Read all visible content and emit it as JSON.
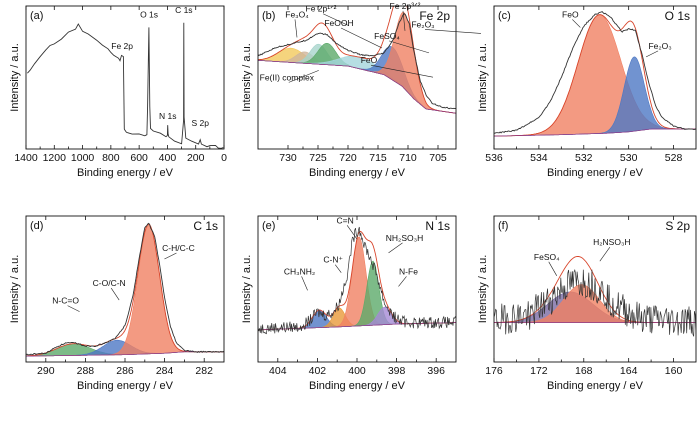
{
  "chart_data": [
    {
      "type": "line",
      "panel_label": "(a)",
      "title": "",
      "xlabel": "Binding energy / eV",
      "ylabel": "Intensity / a.u.",
      "x_reversed": true,
      "xlim": [
        1400,
        0
      ],
      "xticks": [
        1400,
        1200,
        1000,
        800,
        600,
        400,
        200,
        0
      ],
      "ylim": [
        0,
        100
      ],
      "series": [
        {
          "color": "#111111",
          "x": [
            1390,
            1370,
            1340,
            1300,
            1260,
            1230,
            1200,
            1150,
            1100,
            1050,
            1030,
            1000,
            960,
            900,
            860,
            820,
            800,
            780,
            745,
            735,
            725,
            711,
            705,
            700,
            690,
            650,
            600,
            560,
            545,
            540,
            531,
            525,
            520,
            500,
            450,
            410,
            400,
            398,
            395,
            390,
            350,
            300,
            286,
            284,
            282,
            270,
            230,
            180,
            168,
            160,
            120,
            100,
            60,
            40,
            20,
            5
          ],
          "y": [
            53,
            55,
            59,
            64,
            70,
            72,
            73,
            77,
            81,
            84,
            88,
            83,
            80,
            76,
            73,
            70,
            68,
            66,
            64,
            62,
            66,
            64,
            14,
            13,
            12,
            11,
            10,
            9,
            10,
            30,
            85,
            30,
            14,
            13,
            11,
            9,
            10,
            16,
            11,
            8,
            5,
            4,
            20,
            88,
            22,
            7,
            5,
            3,
            7,
            3,
            2,
            2,
            2,
            1,
            1,
            1
          ]
        }
      ],
      "annotations": [
        {
          "text": "Fe 2p",
          "x": 720,
          "y": 70
        },
        {
          "text": "O 1s",
          "x": 530,
          "y": 92
        },
        {
          "text": "C 1s",
          "x": 284,
          "y": 95
        },
        {
          "text": "N 1s",
          "x": 398,
          "y": 21
        },
        {
          "text": "S 2p",
          "x": 168,
          "y": 16
        }
      ]
    },
    {
      "type": "line",
      "panel_label": "(b)",
      "title": "Fe 2p",
      "xlabel": "Binding energy / eV",
      "ylabel": "Intensity / a.u.",
      "x_reversed": true,
      "xlim": [
        735,
        702
      ],
      "xticks": [
        730,
        725,
        720,
        715,
        710,
        705
      ],
      "ylim": [
        0,
        100
      ],
      "background": {
        "x": [
          735,
          720,
          714,
          711,
          709,
          707,
          702
        ],
        "y": [
          62,
          58,
          52,
          44,
          35,
          28,
          25
        ]
      },
      "envelope": {
        "x": [
          735,
          732,
          729,
          727,
          725,
          723.5,
          722,
          720,
          718,
          716,
          714,
          712.5,
          711.5,
          710.6,
          709.8,
          709,
          708,
          707,
          706,
          704,
          702
        ],
        "y": [
          65,
          71,
          74,
          76,
          81,
          80,
          74,
          69,
          66,
          65,
          67,
          76,
          88,
          95,
          88,
          68,
          48,
          38,
          32,
          29,
          28
        ]
      },
      "series": [
        {
          "name": "Fe(II) complex",
          "color": "#f3c95c",
          "center": 729.5,
          "height": 10,
          "width": 2.2
        },
        {
          "name": "Fe₃O₄",
          "color": "#cfb59c",
          "center": 727.2,
          "height": 8,
          "width": 1.5
        },
        {
          "name": "Fe 2p¹ᐟ²",
          "color": "#a7d4cc",
          "center": 724.9,
          "height": 14,
          "width": 1.4
        },
        {
          "name": "FeOOH",
          "color": "#5daa6a",
          "center": 723.5,
          "height": 15,
          "width": 1.5
        },
        {
          "name": "FeO",
          "color": "#a4d6dc",
          "center": 718.2,
          "height": 8,
          "width": 3.2
        },
        {
          "name": "FeSO₄",
          "color": "#4d78c4",
          "center": 712.6,
          "height": 23,
          "width": 1.7
        },
        {
          "name": "Fe 2p³ᐟ²",
          "color": "#f08163",
          "center": 710.6,
          "height": 53,
          "width": 1.6
        }
      ],
      "annotations": [
        {
          "text": "Fe₃O₄",
          "x": 728.5,
          "y": 92
        },
        {
          "text": "Fe 2p¹ᐟ²",
          "x": 724.5,
          "y": 96
        },
        {
          "text": "FeOOH",
          "x": 721.5,
          "y": 86
        },
        {
          "text": "FeO",
          "x": 716.5,
          "y": 60
        },
        {
          "text": "FeSO₄",
          "x": 713.5,
          "y": 77
        },
        {
          "text": "Fe 2p³ᐟ²",
          "x": 710.5,
          "y": 98
        },
        {
          "text": "Fe₂O₃",
          "x": 707.5,
          "y": 85
        },
        {
          "text": "Fe(II) complex",
          "x": 730.2,
          "y": 48
        }
      ]
    },
    {
      "type": "line",
      "panel_label": "(c)",
      "title": "O 1s",
      "xlabel": "Binding energy / eV",
      "ylabel": "Intensity / a.u.",
      "x_reversed": true,
      "xlim": [
        536,
        527
      ],
      "xticks": [
        536,
        534,
        532,
        530,
        528
      ],
      "ylim": [
        0,
        100
      ],
      "background": {
        "x": [
          536,
          533,
          531,
          530,
          529,
          527
        ],
        "y": [
          9,
          10,
          11,
          12,
          14,
          14
        ]
      },
      "envelope": {
        "x": [
          536,
          535,
          534,
          533.5,
          533,
          532.5,
          532,
          531.5,
          531.2,
          530.8,
          530.3,
          530,
          529.7,
          529.4,
          529.1,
          528.8,
          528.5,
          528,
          527.5,
          527
        ],
        "y": [
          11,
          13,
          22,
          33,
          50,
          70,
          86,
          94,
          96,
          92,
          82,
          84,
          83,
          66,
          46,
          30,
          22,
          16,
          14,
          14
        ]
      },
      "series": [
        {
          "name": "FeO",
          "color": "#f08163",
          "center": 531.3,
          "height": 83,
          "width": 0.95
        },
        {
          "name": "Fe₂O₃",
          "color": "#4d78c4",
          "center": 529.75,
          "height": 52,
          "width": 0.45
        }
      ],
      "annotations": [
        {
          "text": "FeO",
          "x": 532.6,
          "y": 92
        },
        {
          "text": "Fe₂O₃",
          "x": 528.6,
          "y": 70
        }
      ]
    },
    {
      "type": "line",
      "panel_label": "(d)",
      "title": "C 1s",
      "xlabel": "Binding energy / eV",
      "ylabel": "Intensity / a.u.",
      "x_reversed": true,
      "xlim": [
        291,
        281
      ],
      "xticks": [
        290,
        288,
        286,
        284,
        282
      ],
      "ylim": [
        0,
        100
      ],
      "background": {
        "x": [
          291,
          286,
          284,
          283,
          281
        ],
        "y": [
          4,
          5,
          6,
          7,
          7
        ]
      },
      "envelope": {
        "x": [
          291,
          290,
          289.5,
          289,
          288.5,
          288,
          287.5,
          287,
          286.5,
          286,
          285.6,
          285.3,
          285,
          284.8,
          284.5,
          284.2,
          284,
          283.7,
          283.4,
          283,
          282.5,
          282,
          281
        ],
        "y": [
          5,
          6,
          10,
          13,
          13,
          11,
          11,
          13,
          16,
          25,
          45,
          70,
          92,
          95,
          86,
          62,
          44,
          24,
          13,
          8,
          7,
          7,
          7
        ]
      },
      "series": [
        {
          "name": "N-C=O",
          "color": "#5daa6a",
          "center": 288.6,
          "height": 8,
          "width": 0.85
        },
        {
          "name": "C-O/C-N",
          "color": "#4d78c4",
          "center": 286.4,
          "height": 10,
          "width": 0.7
        },
        {
          "name": "C-H/C-C",
          "color": "#f08163",
          "center": 284.8,
          "height": 88,
          "width": 0.55
        }
      ],
      "annotations": [
        {
          "text": "N-C=O",
          "x": 289.0,
          "y": 40
        },
        {
          "text": "C-O/C-N",
          "x": 286.8,
          "y": 52
        },
        {
          "text": "C-H/C-C",
          "x": 283.3,
          "y": 76
        }
      ]
    },
    {
      "type": "line",
      "panel_label": "(e)",
      "title": "N 1s",
      "xlabel": "Binding energy / eV",
      "ylabel": "Intensity / a.u.",
      "x_reversed": true,
      "xlim": [
        405,
        395
      ],
      "xticks": [
        404,
        402,
        400,
        398,
        396
      ],
      "ylim": [
        0,
        100
      ],
      "noise_amplitude": 8,
      "background": {
        "x": [
          405,
          401,
          398,
          395
        ],
        "y": [
          22,
          24,
          26,
          27
        ]
      },
      "envelope": {
        "x": [
          405,
          403,
          402.4,
          402,
          401.6,
          401.2,
          400.9,
          400.5,
          400.2,
          399.9,
          399.6,
          399.3,
          399.0,
          398.6,
          398.2,
          397.8,
          397.3,
          396.5,
          395
        ],
        "y": [
          23,
          24,
          28,
          34,
          32,
          34,
          40,
          60,
          85,
          92,
          80,
          70,
          60,
          40,
          32,
          28,
          27,
          27,
          27
        ]
      },
      "series": [
        {
          "name": "CH₃NH₂",
          "color": "#4d78c4",
          "center": 401.9,
          "height": 12,
          "width": 0.35
        },
        {
          "name": "C-N⁺",
          "color": "#e89a3a",
          "center": 400.9,
          "height": 13,
          "width": 0.3
        },
        {
          "name": "C=N",
          "color": "#f08163",
          "center": 399.9,
          "height": 61,
          "width": 0.35
        },
        {
          "name": "NH₂SO₃H",
          "color": "#5daa6a",
          "center": 399.2,
          "height": 44,
          "width": 0.3
        },
        {
          "name": "N-Fe",
          "color": "#a58ad6",
          "center": 398.6,
          "height": 12,
          "width": 0.35
        }
      ],
      "annotations": [
        {
          "text": "CH₃NH₂",
          "x": 402.9,
          "y": 60
        },
        {
          "text": "C-N⁺",
          "x": 401.2,
          "y": 68
        },
        {
          "text": "C=N",
          "x": 400.6,
          "y": 95
        },
        {
          "text": "NH₂SO₃H",
          "x": 397.6,
          "y": 83
        },
        {
          "text": "N-Fe",
          "x": 397.4,
          "y": 60
        }
      ]
    },
    {
      "type": "line",
      "panel_label": "(f)",
      "title": "S 2p",
      "xlabel": "Binding energy / eV",
      "ylabel": "Intensity / a.u.",
      "x_reversed": true,
      "xlim": [
        176,
        158
      ],
      "xticks": [
        176,
        172,
        168,
        164,
        160
      ],
      "ylim": [
        0,
        100
      ],
      "noise_amplitude": 22,
      "background": {
        "x": [
          176,
          168,
          158
        ],
        "y": [
          27,
          27,
          27
        ]
      },
      "envelope": {
        "x": [
          176,
          173,
          171,
          170,
          169,
          168,
          167,
          166,
          165,
          163,
          160,
          158
        ],
        "y": [
          28,
          32,
          42,
          50,
          54,
          55,
          52,
          46,
          38,
          30,
          28,
          28
        ]
      },
      "series": [
        {
          "name": "FeSO₄",
          "color": "#7a6ba4",
          "center": 169.2,
          "height": 21,
          "width": 2.0
        },
        {
          "name": "H₂NSO₃H",
          "color": "#f08163",
          "center": 168.2,
          "height": 26,
          "width": 1.6
        }
      ],
      "annotations": [
        {
          "text": "FeSO₄",
          "x": 171.3,
          "y": 70
        },
        {
          "text": "H₂NSO₃H",
          "x": 165.5,
          "y": 80
        }
      ]
    }
  ]
}
